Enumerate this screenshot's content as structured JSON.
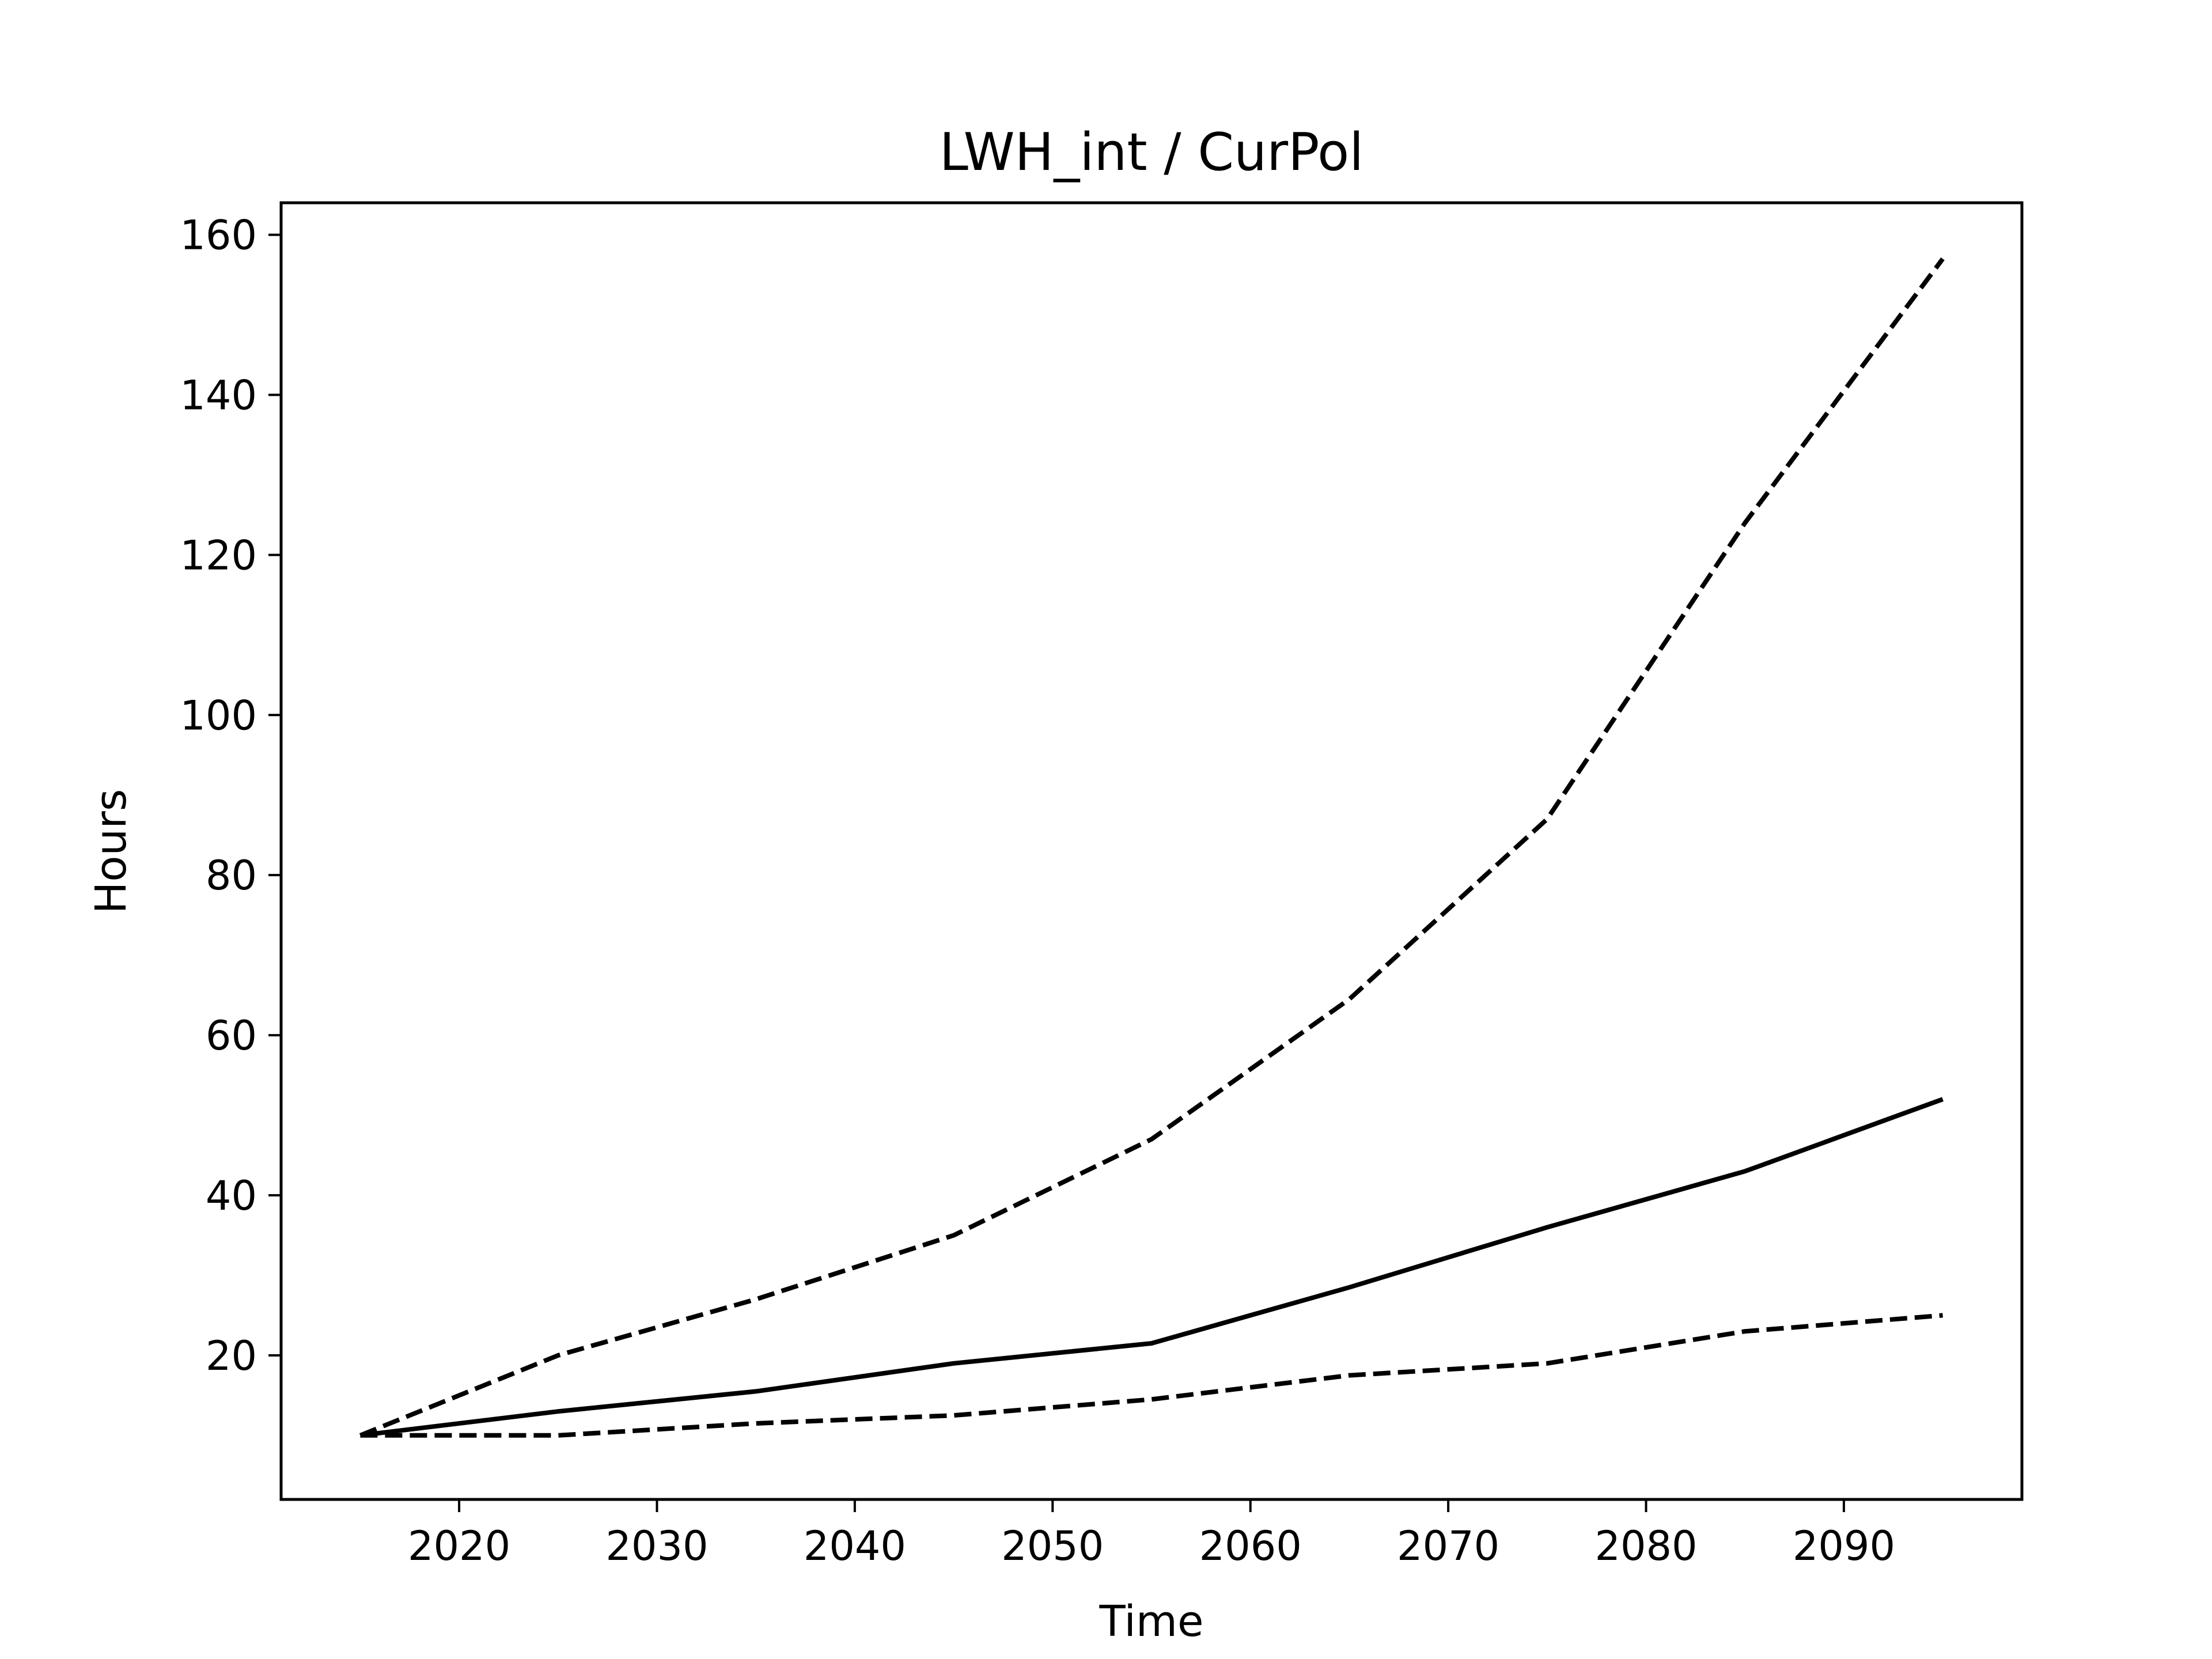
{
  "chart_data": {
    "type": "line",
    "title": "LWH_int / CurPol",
    "xlabel": "Time",
    "ylabel": "Hours",
    "xlim": [
      2011,
      2099
    ],
    "ylim": [
      2,
      164
    ],
    "xticks": [
      2020,
      2030,
      2040,
      2050,
      2060,
      2070,
      2080,
      2090
    ],
    "yticks": [
      20,
      40,
      60,
      80,
      100,
      120,
      140,
      160
    ],
    "grid": false,
    "legend": "none",
    "x": [
      2015,
      2025,
      2035,
      2045,
      2055,
      2065,
      2075,
      2085,
      2095
    ],
    "series": [
      {
        "style": "solid",
        "color": "#000000",
        "values": [
          10,
          13,
          15.5,
          19,
          21.5,
          28.5,
          36,
          43,
          52
        ]
      },
      {
        "style": "dashed",
        "color": "#000000",
        "values": [
          10,
          20,
          27,
          35,
          47,
          64.5,
          87,
          124,
          157
        ]
      },
      {
        "style": "dashed",
        "color": "#000000",
        "values": [
          10,
          10,
          11.5,
          12.5,
          14.5,
          17.5,
          19,
          23,
          25
        ]
      }
    ]
  }
}
